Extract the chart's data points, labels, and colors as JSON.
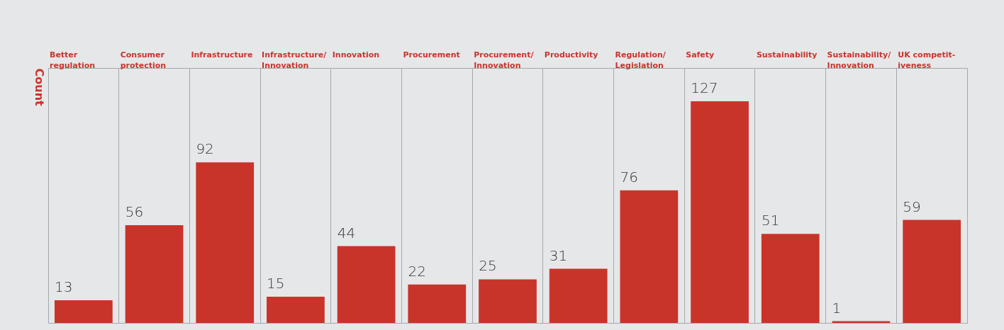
{
  "chart_data": {
    "type": "bar",
    "ylabel": "Count",
    "categories": [
      "Better\nregulation",
      "Consumer\nprotection",
      "Infrastructure",
      "Infrastructure/\nInnovation",
      "Innovation",
      "Procurement",
      "Procurement/\nInnovation",
      "Productivity",
      "Regulation/\nLegislation",
      "Safety",
      "Sustainability",
      "Sustainability/\nInnovation",
      "UK competit-\niveness"
    ],
    "values": [
      13,
      56,
      92,
      15,
      44,
      22,
      25,
      31,
      76,
      127,
      51,
      1,
      59
    ],
    "color": "#c9342a",
    "data_labels": true,
    "grid": "x"
  }
}
